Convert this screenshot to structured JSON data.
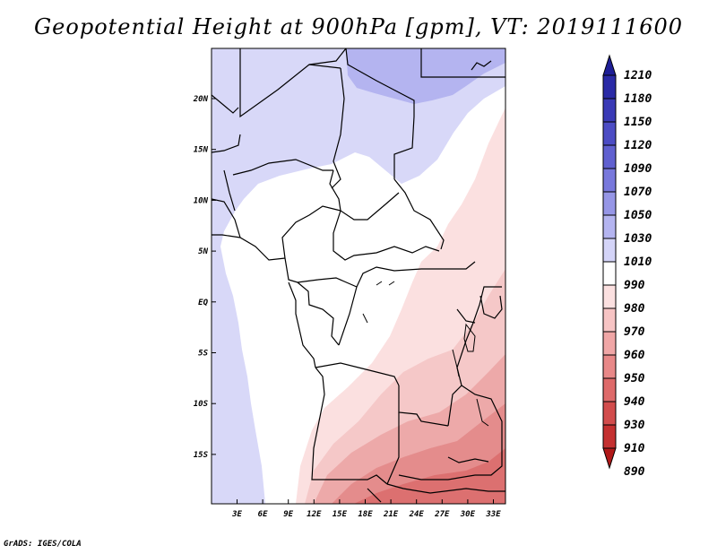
{
  "title": "Geopotential Height at 900hPa [gpm], VT: 2019111600",
  "credit": "GrADS: IGES/COLA",
  "axes": {
    "lat_ticks": [
      "20N",
      "15N",
      "10N",
      "5N",
      "EQ",
      "5S",
      "10S",
      "15S"
    ],
    "lon_ticks": [
      "3E",
      "6E",
      "9E",
      "12E",
      "15E",
      "18E",
      "21E",
      "24E",
      "27E",
      "30E",
      "33E"
    ]
  },
  "colorbar": {
    "levels": [
      "1210",
      "1180",
      "1150",
      "1120",
      "1090",
      "1070",
      "1050",
      "1030",
      "1010",
      "990",
      "980",
      "970",
      "960",
      "950",
      "940",
      "930",
      "910",
      "890"
    ],
    "colors": [
      "#1e1e96",
      "#2a2aa6",
      "#3a3ab6",
      "#4c4cc4",
      "#6060d0",
      "#7878dc",
      "#9696e6",
      "#b4b4f0",
      "#d4d4f8",
      "#ffffff",
      "#fbe0e0",
      "#f7c4c4",
      "#f0a6a6",
      "#e88888",
      "#de6a6a",
      "#d24c4c",
      "#c43030",
      "#b01818"
    ]
  }
}
